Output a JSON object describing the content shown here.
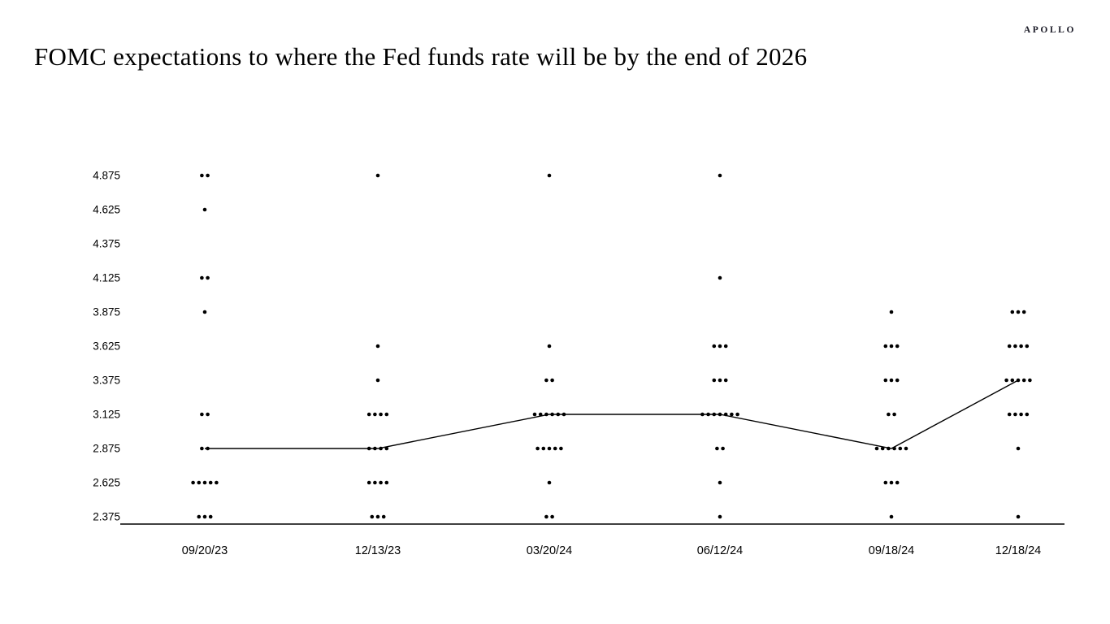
{
  "brand": "APOLLO",
  "title": "FOMC expectations to where the Fed funds rate will be by the end of 2026",
  "chart_data": {
    "type": "scatter",
    "subtype": "fomc-dot-plot",
    "title": "FOMC expectations to where the Fed funds rate will be by the end of 2026",
    "xlabel": "",
    "ylabel": "",
    "grid": false,
    "legend": false,
    "dot_color": "#000000",
    "line_color": "#000000",
    "ylim": [
      2.375,
      4.875
    ],
    "rate_levels": [
      4.875,
      4.625,
      4.375,
      4.125,
      3.875,
      3.625,
      3.375,
      3.125,
      2.875,
      2.625,
      2.375
    ],
    "categories": [
      "09/20/23",
      "12/13/23",
      "03/20/24",
      "06/12/24",
      "09/18/24",
      "12/18/24"
    ],
    "dot_counts": [
      {
        "date": "09/20/23",
        "dots": {
          "4.875": 2,
          "4.625": 1,
          "4.125": 2,
          "3.875": 1,
          "3.125": 2,
          "2.875": 2,
          "2.625": 5,
          "2.375": 3
        }
      },
      {
        "date": "12/13/23",
        "dots": {
          "4.875": 1,
          "3.625": 1,
          "3.375": 1,
          "3.125": 4,
          "2.875": 4,
          "2.625": 4,
          "2.375": 3
        }
      },
      {
        "date": "03/20/24",
        "dots": {
          "4.875": 1,
          "3.625": 1,
          "3.375": 2,
          "3.125": 6,
          "2.875": 5,
          "2.625": 1,
          "2.375": 2
        }
      },
      {
        "date": "06/12/24",
        "dots": {
          "4.875": 1,
          "4.125": 1,
          "3.625": 3,
          "3.375": 3,
          "3.125": 7,
          "2.875": 2,
          "2.625": 1,
          "2.375": 1
        }
      },
      {
        "date": "09/18/24",
        "dots": {
          "3.875": 1,
          "3.625": 3,
          "3.375": 3,
          "3.125": 2,
          "2.875": 6,
          "2.625": 3,
          "2.375": 1
        }
      },
      {
        "date": "12/18/24",
        "dots": {
          "3.875": 3,
          "3.625": 4,
          "3.375": 5,
          "3.125": 4,
          "2.875": 1,
          "2.375": 1
        }
      }
    ],
    "median_line": [
      2.875,
      2.875,
      3.125,
      3.125,
      2.875,
      3.375
    ]
  }
}
